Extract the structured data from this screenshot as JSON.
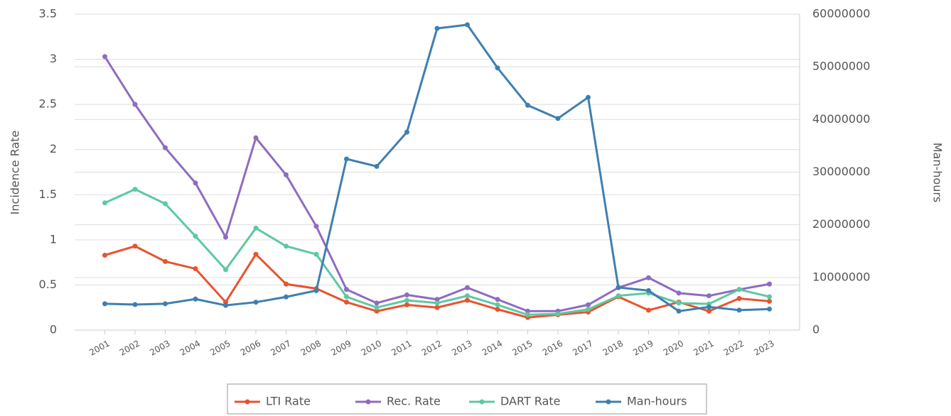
{
  "chart_data": {
    "type": "line",
    "ylabel": "Incidence Rate",
    "y2label": "Man-hours",
    "categories": [
      "2001",
      "2002",
      "2003",
      "2004",
      "2005",
      "2006",
      "2007",
      "2008",
      "2009",
      "2010",
      "2011",
      "2012",
      "2013",
      "2014",
      "2015",
      "2016",
      "2017",
      "2018",
      "2019",
      "2020",
      "2021",
      "2022",
      "2023"
    ],
    "series": [
      {
        "name": "LTI Rate",
        "color": "#e8532f",
        "values": [
          0.83,
          0.93,
          0.76,
          0.68,
          0.31,
          0.84,
          0.51,
          0.46,
          0.31,
          0.21,
          0.28,
          0.25,
          0.33,
          0.23,
          0.14,
          0.17,
          0.2,
          0.37,
          0.22,
          0.31,
          0.21,
          0.35,
          0.32
        ]
      },
      {
        "name": "Rec. Rate",
        "color": "#8e6cbf",
        "values": [
          3.03,
          2.5,
          2.02,
          1.63,
          1.03,
          2.13,
          1.72,
          1.15,
          0.45,
          0.3,
          0.39,
          0.34,
          0.47,
          0.34,
          0.21,
          0.21,
          0.28,
          0.47,
          0.58,
          0.41,
          0.38,
          0.45,
          0.51
        ]
      },
      {
        "name": "DART Rate",
        "color": "#5dc9a0",
        "values": [
          1.41,
          1.56,
          1.4,
          1.04,
          0.67,
          1.13,
          0.93,
          0.84,
          0.37,
          0.25,
          0.33,
          0.3,
          0.38,
          0.28,
          0.17,
          0.18,
          0.23,
          0.38,
          0.41,
          0.3,
          0.29,
          0.45,
          0.37
        ]
      },
      {
        "name": "Man-hours",
        "color": "#3f7fb0",
        "axis": "y2",
        "values": [
          5000000,
          4850000,
          5000000,
          5900000,
          4700000,
          5300000,
          6300000,
          7500000,
          32500000,
          31100000,
          37600000,
          57300000,
          58000000,
          49800000,
          42700000,
          40200000,
          44200000,
          8100000,
          7500000,
          3600000,
          4400000,
          3800000,
          4000000
        ]
      }
    ],
    "ylim": [
      0,
      3.5
    ],
    "yticks": [
      0,
      0.5,
      1,
      1.5,
      2,
      2.5,
      3,
      3.5
    ],
    "y2lim": [
      0,
      60000000
    ],
    "y2ticks": [
      0,
      10000000,
      20000000,
      30000000,
      40000000,
      50000000,
      60000000
    ],
    "grid": true,
    "legend": "bottom"
  }
}
